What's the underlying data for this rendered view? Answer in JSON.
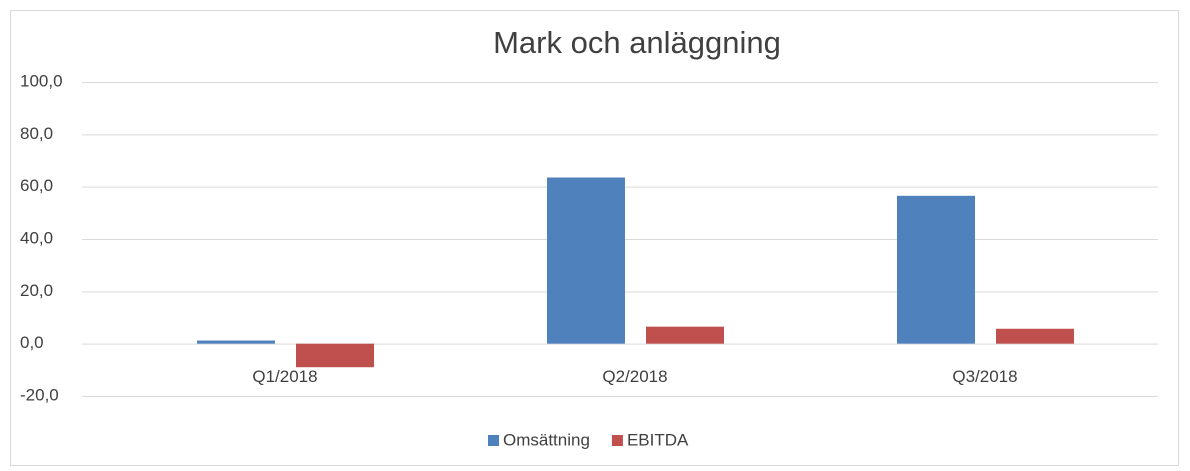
{
  "chart_data": {
    "type": "bar",
    "title": "Mark och anläggning",
    "categories": [
      "Q1/2018",
      "Q2/2018",
      "Q3/2018"
    ],
    "series": [
      {
        "name": "Omsättning",
        "color": "#4f81bd",
        "values": [
          1.2,
          63.5,
          56.5
        ]
      },
      {
        "name": "EBITDA",
        "color": "#c0504d",
        "values": [
          -9.0,
          6.5,
          5.7
        ]
      }
    ],
    "ylim": [
      -20,
      100
    ],
    "yticks": [
      {
        "value": -20,
        "label": "-20,0"
      },
      {
        "value": 0,
        "label": "0,0"
      },
      {
        "value": 20,
        "label": "20,0"
      },
      {
        "value": 40,
        "label": "40,0"
      },
      {
        "value": 60,
        "label": "60,0"
      },
      {
        "value": 80,
        "label": "80,0"
      },
      {
        "value": 100,
        "label": "100,0"
      }
    ],
    "grid": true,
    "legend": "bottom"
  }
}
